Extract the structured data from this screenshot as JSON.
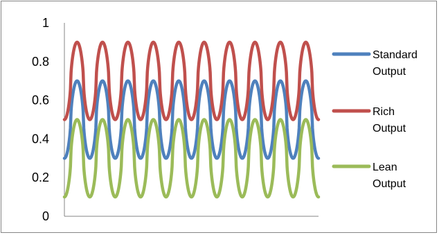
{
  "chart_data": {
    "type": "line",
    "title": "",
    "xlabel": "",
    "ylabel": "",
    "ylim": [
      0,
      1
    ],
    "yticks": [
      "0",
      "0.2",
      "0.4",
      "0.6",
      "0.8",
      "1"
    ],
    "grid": false,
    "legend_placement": "right",
    "cycles": 10,
    "series": [
      {
        "name_lines": [
          "Standard",
          "Output"
        ],
        "color": "#4F81BD",
        "min": 0.3,
        "max": 0.7
      },
      {
        "name_lines": [
          "Rich",
          "Output"
        ],
        "color": "#C0504D",
        "min": 0.5,
        "max": 0.9
      },
      {
        "name_lines": [
          "Lean",
          "Output"
        ],
        "color": "#9BBB59",
        "min": 0.1,
        "max": 0.5
      }
    ]
  }
}
